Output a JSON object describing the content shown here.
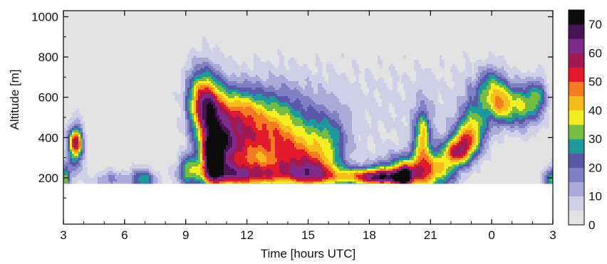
{
  "chart_data": {
    "type": "heatmap",
    "xlabel": "Time [hours UTC]",
    "ylabel": "Altitude [m]",
    "x_tick_labels": [
      "3",
      "6",
      "9",
      "12",
      "15",
      "18",
      "21",
      "0",
      "3"
    ],
    "y_tick_labels": [
      "200",
      "400",
      "600",
      "800",
      "1000"
    ],
    "y_ticks": [
      200,
      400,
      600,
      800,
      1000
    ],
    "x_range_hours": [
      0,
      24
    ],
    "y_range_m": [
      -30,
      1030
    ],
    "data_floor_m": 170,
    "colorbar": {
      "labels": [
        "0",
        "10",
        "20",
        "30",
        "40",
        "50",
        "60",
        "70"
      ],
      "min": 0,
      "max": 70,
      "step": 5,
      "colors": [
        "#e3e3e3",
        "#cfcfe8",
        "#a9aad8",
        "#7f80c4",
        "#5959aa",
        "#1f9a9a",
        "#75bc44",
        "#f2ee22",
        "#f8bd1c",
        "#f47b20",
        "#e21a2b",
        "#a21a54",
        "#7e2b8c",
        "#4a1454",
        "#0c0c0c"
      ]
    },
    "features": [
      {
        "t": 0.1,
        "z": 195,
        "amp": 34,
        "st": 0.15,
        "sz": 50
      },
      {
        "t": 0.6,
        "z": 380,
        "amp": 40,
        "st": 0.22,
        "sz": 50
      },
      {
        "t": 0.6,
        "z": 330,
        "amp": 22,
        "st": 0.3,
        "sz": 90
      },
      {
        "t": 2.3,
        "z": 190,
        "amp": 16,
        "st": 0.6,
        "sz": 35
      },
      {
        "t": 3.9,
        "z": 190,
        "amp": 28,
        "st": 0.45,
        "sz": 40
      },
      {
        "t": 6.1,
        "z": 240,
        "amp": 26,
        "st": 0.35,
        "sz": 55
      },
      {
        "t": 6.7,
        "z": 600,
        "amp": 22,
        "st": 0.5,
        "sz": 120
      },
      {
        "t": 7.0,
        "z": 560,
        "amp": 26,
        "st": 0.5,
        "sz": 90
      },
      {
        "t": 7.4,
        "z": 420,
        "amp": 32,
        "st": 0.55,
        "sz": 160
      },
      {
        "t": 7.3,
        "z": 300,
        "amp": 44,
        "st": 0.35,
        "sz": 80
      },
      {
        "t": 8.2,
        "z": 350,
        "amp": 34,
        "st": 0.8,
        "sz": 110
      },
      {
        "t": 8.6,
        "z": 550,
        "amp": 18,
        "st": 0.7,
        "sz": 80
      },
      {
        "t": 9.0,
        "z": 210,
        "amp": 42,
        "st": 1.6,
        "sz": 45
      },
      {
        "t": 9.7,
        "z": 400,
        "amp": 24,
        "st": 1.2,
        "sz": 120
      },
      {
        "t": 10.5,
        "z": 480,
        "amp": 18,
        "st": 1.5,
        "sz": 130
      },
      {
        "t": 11.3,
        "z": 300,
        "amp": 30,
        "st": 1.0,
        "sz": 90
      },
      {
        "t": 12.2,
        "z": 220,
        "amp": 30,
        "st": 0.8,
        "sz": 60
      },
      {
        "t": 13.0,
        "z": 360,
        "amp": 22,
        "st": 0.7,
        "sz": 110
      },
      {
        "t": 14.5,
        "z": 205,
        "amp": 32,
        "st": 1.4,
        "sz": 35
      },
      {
        "t": 15.6,
        "z": 200,
        "amp": 38,
        "st": 0.8,
        "sz": 30
      },
      {
        "t": 16.8,
        "z": 250,
        "amp": 26,
        "st": 1.0,
        "sz": 55
      },
      {
        "t": 16.7,
        "z": 200,
        "amp": 50,
        "st": 0.3,
        "sz": 40
      },
      {
        "t": 17.6,
        "z": 220,
        "amp": 24,
        "st": 0.4,
        "sz": 200
      },
      {
        "t": 17.6,
        "z": 420,
        "amp": 22,
        "st": 0.25,
        "sz": 80
      },
      {
        "t": 18.5,
        "z": 230,
        "amp": 28,
        "st": 0.6,
        "sz": 70
      },
      {
        "t": 19.3,
        "z": 330,
        "amp": 40,
        "st": 0.5,
        "sz": 50
      },
      {
        "t": 19.8,
        "z": 400,
        "amp": 30,
        "st": 0.5,
        "sz": 70
      },
      {
        "t": 20.3,
        "z": 500,
        "amp": 22,
        "st": 0.5,
        "sz": 110
      },
      {
        "t": 21.0,
        "z": 650,
        "amp": 25,
        "st": 0.5,
        "sz": 80
      },
      {
        "t": 21.5,
        "z": 560,
        "amp": 32,
        "st": 0.4,
        "sz": 70
      },
      {
        "t": 22.5,
        "z": 560,
        "amp": 32,
        "st": 0.5,
        "sz": 80
      },
      {
        "t": 23.3,
        "z": 600,
        "amp": 22,
        "st": 0.3,
        "sz": 70
      },
      {
        "t": 23.9,
        "z": 190,
        "amp": 30,
        "st": 0.25,
        "sz": 45
      }
    ]
  }
}
